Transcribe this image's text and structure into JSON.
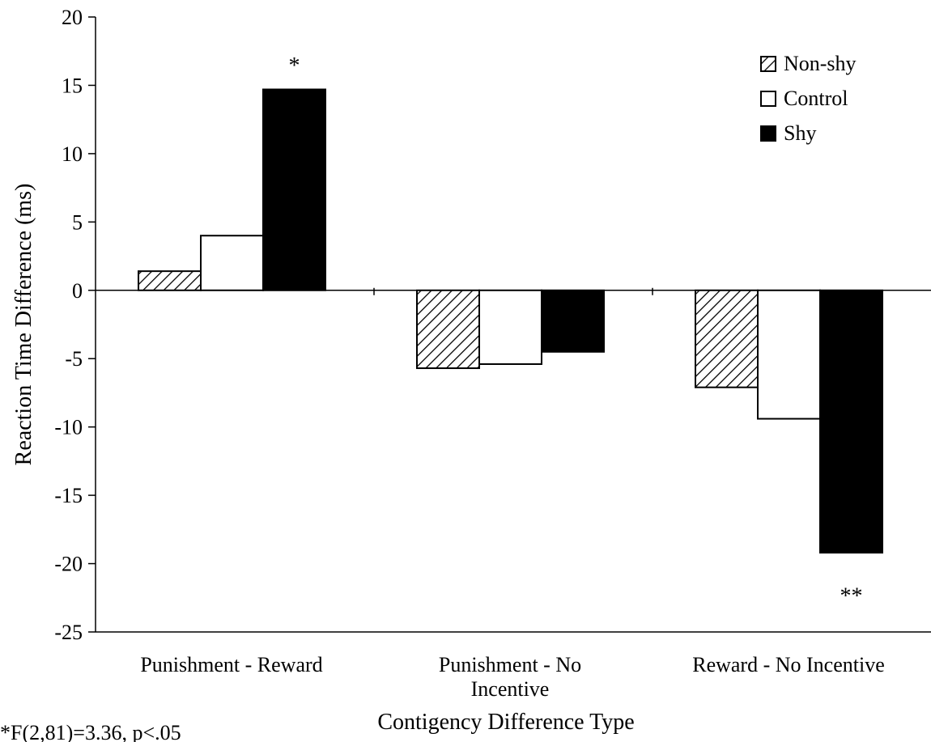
{
  "chart_data": {
    "type": "bar",
    "xlabel": "Contigency Difference Type",
    "ylabel": "Reaction Time Difference (ms)",
    "ylim": [
      -25,
      20
    ],
    "yticks": [
      20,
      15,
      10,
      5,
      0,
      -5,
      -10,
      -15,
      -20,
      -25
    ],
    "categories": [
      [
        "Punishment - Reward"
      ],
      [
        "Punishment - No",
        "Incentive"
      ],
      [
        "Reward - No Incentive"
      ]
    ],
    "series": [
      {
        "name": "Non-shy",
        "values": [
          1.4,
          -5.7,
          -7.1
        ],
        "pattern": "hatch"
      },
      {
        "name": "Control",
        "values": [
          4.0,
          -5.4,
          -9.4
        ],
        "pattern": "white"
      },
      {
        "name": "Shy",
        "values": [
          14.7,
          -4.5,
          -19.2
        ],
        "pattern": "black"
      }
    ],
    "legend_position": "top-right",
    "annotations": [
      {
        "text": "*",
        "category": 0,
        "series": 2,
        "value": 16.5
      },
      {
        "text": "**",
        "category": 2,
        "series": 2,
        "value": -22.3
      }
    ],
    "footnote": "*F(2,81)=3.36, p<.05"
  }
}
